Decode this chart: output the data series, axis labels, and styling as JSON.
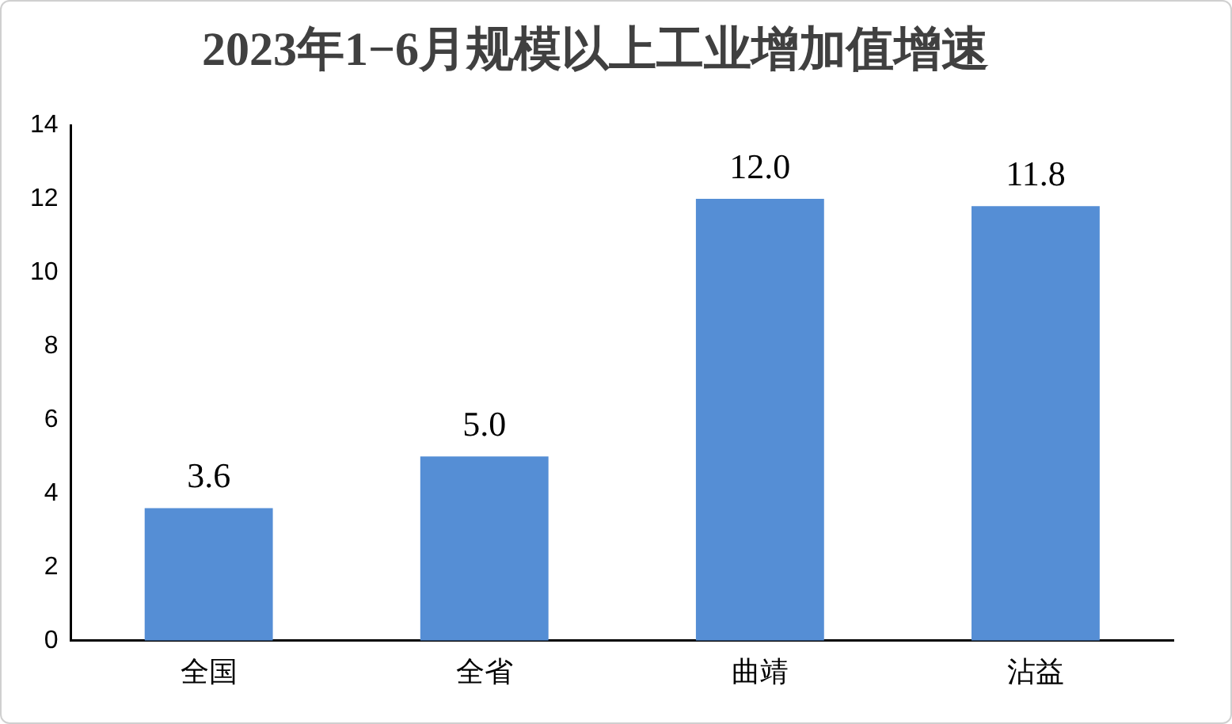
{
  "chart_data": {
    "type": "bar",
    "title": "2023年1−6月规模以上工业增加值增速",
    "categories": [
      "全国",
      "全省",
      "曲靖",
      "沾益"
    ],
    "values": [
      3.6,
      5.0,
      12.0,
      11.8
    ],
    "color": "#558ed5",
    "value_labels": [
      "3.6",
      "5.0",
      "12.0",
      "11.8"
    ],
    "ylim": [
      0,
      14
    ],
    "yticks": [
      0,
      2,
      4,
      6,
      8,
      10,
      12,
      14
    ],
    "grid": false
  }
}
